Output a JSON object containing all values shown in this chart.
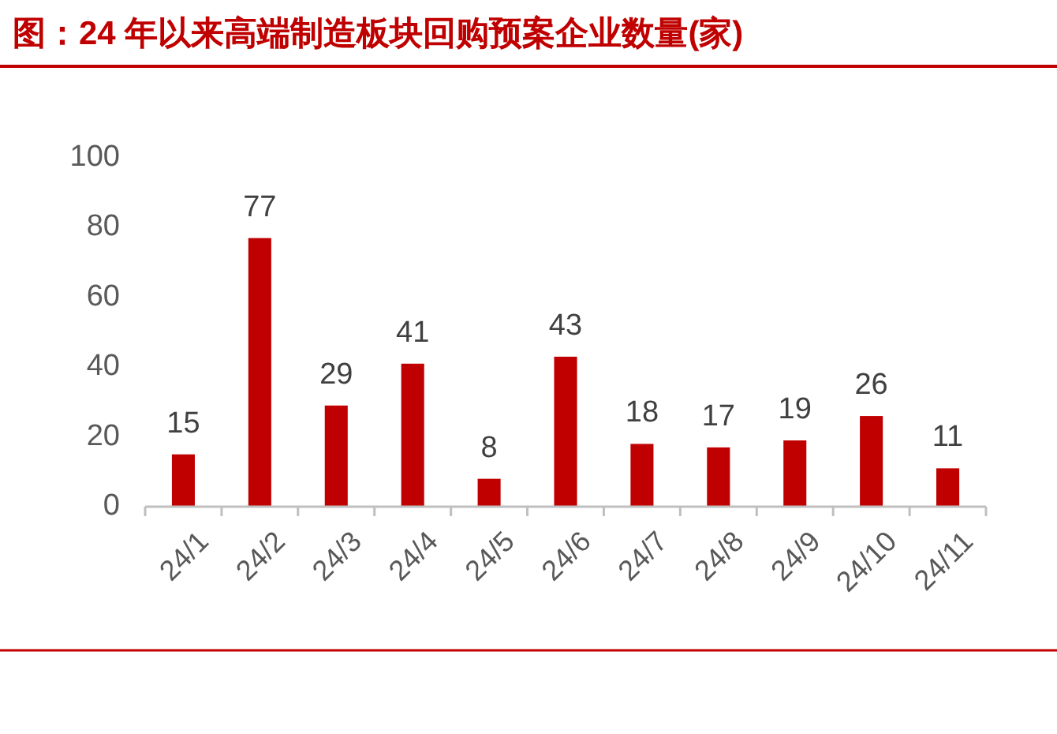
{
  "chart_data": {
    "type": "bar",
    "title": "图：24 年以来高端制造板块回购预案企业数量(家)",
    "categories": [
      "24/1",
      "24/2",
      "24/3",
      "24/4",
      "24/5",
      "24/6",
      "24/7",
      "24/8",
      "24/9",
      "24/10",
      "24/11"
    ],
    "values": [
      15,
      77,
      29,
      41,
      8,
      43,
      18,
      17,
      19,
      26,
      11
    ],
    "color": "#c00000",
    "ylim": [
      0,
      100
    ],
    "yticks": [
      0,
      20,
      40,
      60,
      80,
      100
    ],
    "data_labels": true,
    "grid": false
  }
}
